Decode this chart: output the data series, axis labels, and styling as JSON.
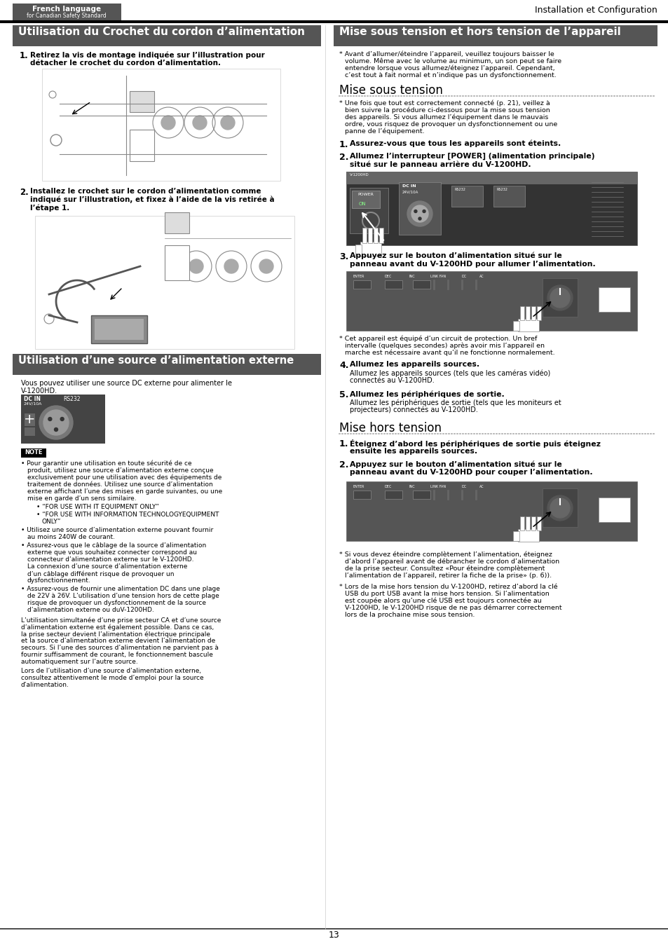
{
  "page_bg": "#ffffff",
  "header_bg": "#555555",
  "page_number": "13",
  "top_label_text": "French language",
  "top_label_subtext": "for Canadian Safety Standard",
  "top_right_text": "Installation et Configuration",
  "left_col_header": "Utilisation du Crochet du cordon d’alimentation",
  "right_col_header": "Mise sous tension et hors tension de l’appareil",
  "left_section2_header": "Utilisation d’une source d’alimentation externe"
}
